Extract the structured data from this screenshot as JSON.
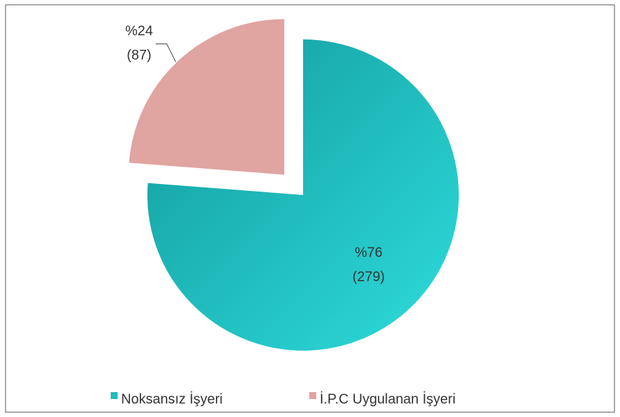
{
  "chart_data": {
    "type": "pie",
    "categories": [
      "Noksansız İşyeri",
      "İ.P.C Uygulanan İşyeri"
    ],
    "values": [
      279,
      87
    ],
    "value_labels": [
      "(279)",
      "(87)"
    ],
    "percents": [
      76,
      24
    ],
    "percent_labels": [
      "%76",
      "%24"
    ],
    "colors": [
      "#1fbcbf",
      "#e0a4a1"
    ],
    "exploded": [
      false,
      true
    ],
    "legend": "bottom"
  }
}
